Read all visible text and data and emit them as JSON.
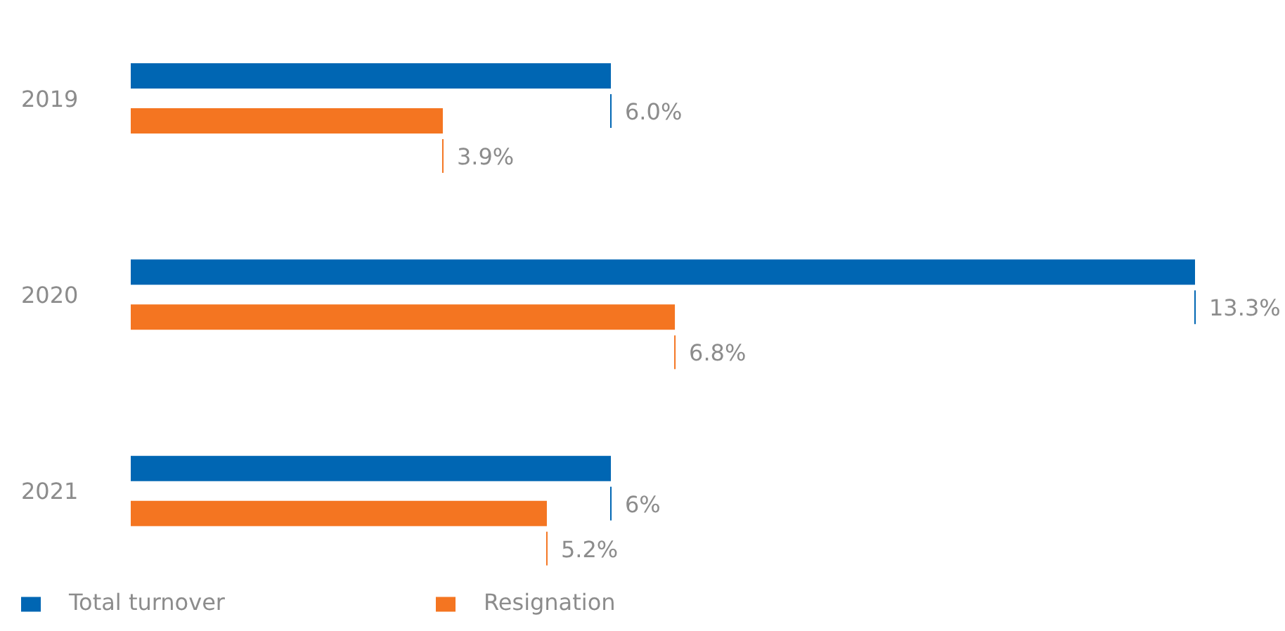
{
  "chart_data": {
    "type": "bar",
    "orientation": "horizontal",
    "categories": [
      "2019",
      "2020",
      "2021"
    ],
    "series": [
      {
        "name": "Total turnover",
        "color": "#0066b3",
        "values": [
          6.0,
          13.3,
          6
        ],
        "value_labels": [
          "6.0%",
          "13.3%",
          "6%"
        ]
      },
      {
        "name": "Resignation",
        "color": "#f47521",
        "values": [
          3.9,
          6.8,
          5.2
        ],
        "value_labels": [
          "3.9%",
          "6.8%",
          "5.2%"
        ]
      }
    ],
    "legend": "bottom left",
    "grid": false
  }
}
